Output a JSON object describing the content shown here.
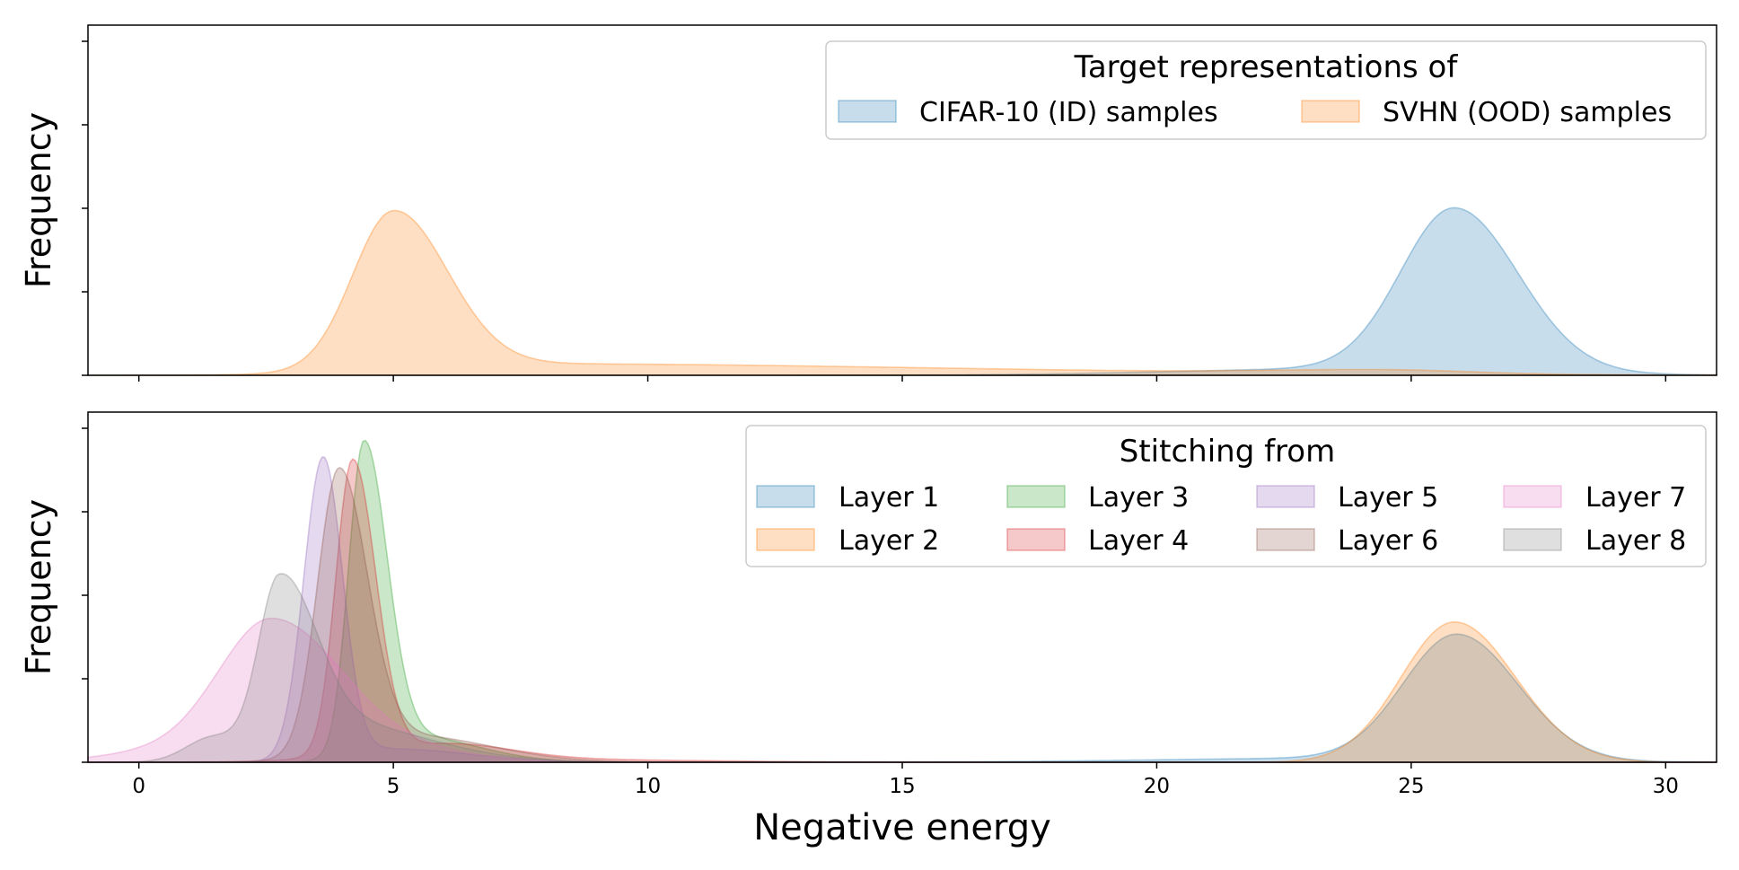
{
  "figure": {
    "xlabel": "Negative energy",
    "colors": {
      "blue": "#1f77b4",
      "orange": "#ff7f0e",
      "green": "#2ca02c",
      "red": "#d62728",
      "purple": "#9467bd",
      "brown": "#8c564b",
      "pink": "#e377c2",
      "gray": "#7f7f7f"
    }
  },
  "chart_data": [
    {
      "type": "area",
      "panel": "top",
      "ylabel": "Frequency",
      "xlim": [
        -1,
        31
      ],
      "ylim": [
        0,
        1.0
      ],
      "xticks": [
        0,
        5,
        10,
        15,
        20,
        25,
        30
      ],
      "show_tick_labels": false,
      "legend": {
        "title": "Target representations of",
        "placement": "top-right",
        "columns": 2,
        "entries": [
          "CIFAR-10 (ID) samples",
          "SVHN (OOD) samples"
        ]
      },
      "series": [
        {
          "name": "CIFAR-10 (ID) samples",
          "color": "blue",
          "components": [
            {
              "mu": 25.85,
              "sl": 1.05,
              "sr": 1.25,
              "w": 0.485
            },
            {
              "mu": 24.0,
              "sl": 3.5,
              "sr": 3.0,
              "w": 0.02
            }
          ]
        },
        {
          "name": "SVHN (OOD) samples",
          "color": "orange",
          "components": [
            {
              "mu": 5.0,
              "sl": 0.8,
              "sr": 1.05,
              "w": 0.47
            },
            {
              "mu": 7.0,
              "sl": 2.2,
              "sr": 9.0,
              "w": 0.035
            },
            {
              "mu": 24.5,
              "sl": 2.2,
              "sr": 1.6,
              "w": 0.012
            }
          ]
        }
      ]
    },
    {
      "type": "area",
      "panel": "bottom",
      "ylabel": "Frequency",
      "xlim": [
        -1,
        31
      ],
      "ylim": [
        0,
        1.0
      ],
      "xticks": [
        0,
        5,
        10,
        15,
        20,
        25,
        30
      ],
      "xtick_labels": [
        "0",
        "5",
        "10",
        "15",
        "20",
        "25",
        "30"
      ],
      "legend": {
        "title": "Stitching from",
        "placement": "top-right",
        "columns": 4,
        "entries": [
          "Layer 1",
          "Layer 2",
          "Layer 3",
          "Layer 4",
          "Layer 5",
          "Layer 6",
          "Layer 7",
          "Layer 8"
        ]
      },
      "series": [
        {
          "name": "Layer 1",
          "color": "blue",
          "components": [
            {
              "mu": 25.9,
              "sl": 1.05,
              "sr": 1.2,
              "w": 0.375
            },
            {
              "mu": 23.5,
              "sl": 3.5,
              "sr": 3.0,
              "w": 0.012
            }
          ]
        },
        {
          "name": "Layer 2",
          "color": "orange",
          "components": [
            {
              "mu": 25.85,
              "sl": 1.05,
              "sr": 1.2,
              "w": 0.42
            }
          ]
        },
        {
          "name": "Layer 3",
          "color": "green",
          "components": [
            {
              "mu": 4.42,
              "sl": 0.3,
              "sr": 0.45,
              "w": 0.92
            },
            {
              "mu": 5.3,
              "sl": 0.8,
              "sr": 1.3,
              "w": 0.08
            }
          ]
        },
        {
          "name": "Layer 4",
          "color": "red",
          "components": [
            {
              "mu": 4.2,
              "sl": 0.33,
              "sr": 0.45,
              "w": 0.88
            },
            {
              "mu": 6.0,
              "sl": 1.5,
              "sr": 1.3,
              "w": 0.05
            },
            {
              "mu": 8.0,
              "sl": 3.0,
              "sr": 3.0,
              "w": 0.008
            }
          ]
        },
        {
          "name": "Layer 5",
          "color": "purple",
          "components": [
            {
              "mu": 3.62,
              "sl": 0.38,
              "sr": 0.38,
              "w": 0.9
            },
            {
              "mu": 5.0,
              "sl": 1.0,
              "sr": 1.5,
              "w": 0.04
            }
          ]
        },
        {
          "name": "Layer 6",
          "color": "brown",
          "components": [
            {
              "mu": 3.93,
              "sl": 0.42,
              "sr": 0.55,
              "w": 0.84
            },
            {
              "mu": 5.3,
              "sl": 1.2,
              "sr": 1.6,
              "w": 0.08
            }
          ]
        },
        {
          "name": "Layer 7",
          "color": "pink",
          "components": [
            {
              "mu": 2.6,
              "sl": 1.0,
              "sr": 1.3,
              "w": 0.4
            },
            {
              "mu": 1.0,
              "sl": 1.4,
              "sr": 1.0,
              "w": 0.04
            },
            {
              "mu": 4.5,
              "sl": 1.4,
              "sr": 1.6,
              "w": 0.05
            }
          ]
        },
        {
          "name": "Layer 8",
          "color": "gray",
          "components": [
            {
              "mu": 2.75,
              "sl": 0.4,
              "sr": 0.7,
              "w": 0.48
            },
            {
              "mu": 3.8,
              "sl": 1.2,
              "sr": 1.8,
              "w": 0.12
            },
            {
              "mu": 1.4,
              "sl": 0.5,
              "sr": 0.5,
              "w": 0.06
            }
          ]
        }
      ]
    }
  ]
}
